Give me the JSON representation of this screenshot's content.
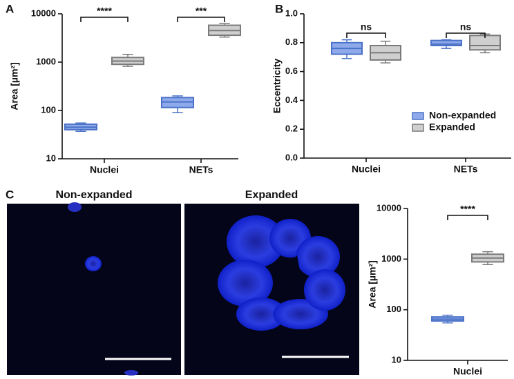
{
  "chart_data": [
    {
      "type": "box",
      "panel": "A",
      "ylabel": "Area [µm²]",
      "log_scale": true,
      "ylim": [
        10,
        10000
      ],
      "yticks": [
        10,
        100,
        1000,
        10000
      ],
      "categories": [
        "Nuclei",
        "NETs"
      ],
      "series": [
        {
          "name": "Non-expanded",
          "color": "#4a72c8",
          "fill": "#8eaaea",
          "boxes": [
            {
              "min": 37,
              "q1": 40,
              "median": 45,
              "q3": 52,
              "max": 55
            },
            {
              "min": 90,
              "q1": 115,
              "median": 150,
              "q3": 185,
              "max": 200
            }
          ]
        },
        {
          "name": "Expanded",
          "color": "#7a7a7a",
          "fill": "#cfcfcf",
          "boxes": [
            {
              "min": 820,
              "q1": 900,
              "median": 1050,
              "q3": 1250,
              "max": 1450
            },
            {
              "min": 3300,
              "q1": 3600,
              "median": 4500,
              "q3": 5800,
              "max": 6300
            }
          ]
        }
      ],
      "annotations": [
        "****",
        "***"
      ]
    },
    {
      "type": "box",
      "panel": "B",
      "ylabel": "Eccentricity",
      "log_scale": false,
      "ylim": [
        0,
        1
      ],
      "yticks": [
        {
          "value": 0,
          "label": "0.0"
        },
        0.2,
        0.4,
        0.6,
        0.8,
        {
          "value": 1,
          "label": "1.0"
        }
      ],
      "categories": [
        "Nuclei",
        "NETs"
      ],
      "legend": "right",
      "series": [
        {
          "name": "Non-expanded",
          "color": "#4a72c8",
          "fill": "#8eaaea",
          "boxes": [
            {
              "min": 0.69,
              "q1": 0.72,
              "median": 0.76,
              "q3": 0.8,
              "max": 0.82
            },
            {
              "min": 0.76,
              "q1": 0.78,
              "median": 0.79,
              "q3": 0.815,
              "max": 0.82
            }
          ]
        },
        {
          "name": "Expanded",
          "color": "#7a7a7a",
          "fill": "#cfcfcf",
          "boxes": [
            {
              "min": 0.66,
              "q1": 0.68,
              "median": 0.73,
              "q3": 0.78,
              "max": 0.81
            },
            {
              "min": 0.73,
              "q1": 0.75,
              "median": 0.78,
              "q3": 0.85,
              "max": 0.86
            }
          ]
        }
      ],
      "annotations": [
        "ns",
        "ns"
      ]
    },
    {
      "type": "box",
      "panel": "C",
      "ylabel": "Area [µm²]",
      "log_scale": true,
      "ylim": [
        10,
        10000
      ],
      "yticks": [
        10,
        100,
        1000,
        10000
      ],
      "categories": [
        "Nuclei"
      ],
      "series": [
        {
          "name": "Non-expanded",
          "color": "#4a72c8",
          "fill": "#8eaaea",
          "boxes": [
            {
              "min": 55,
              "q1": 60,
              "median": 65,
              "q3": 72,
              "max": 78
            }
          ]
        },
        {
          "name": "Expanded",
          "color": "#7a7a7a",
          "fill": "#cfcfcf",
          "boxes": [
            {
              "min": 780,
              "q1": 880,
              "median": 1050,
              "q3": 1250,
              "max": 1400
            }
          ]
        }
      ],
      "annotations": [
        "****"
      ],
      "images": [
        {
          "title": "Non-expanded"
        },
        {
          "title": "Expanded"
        }
      ]
    }
  ]
}
